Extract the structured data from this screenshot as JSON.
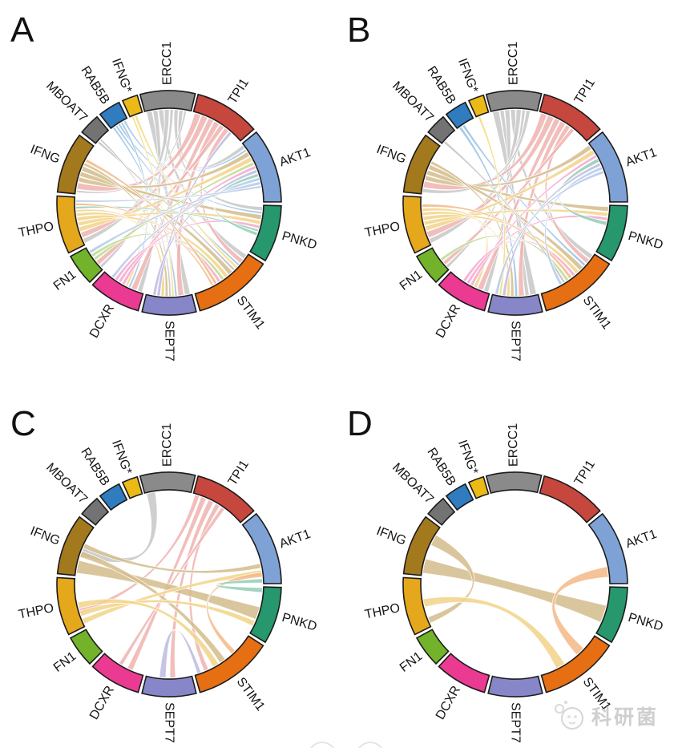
{
  "watermark": {
    "text": "科研菌"
  },
  "chart_data": {
    "type": "chord",
    "title": "",
    "layout": {
      "panels_grid": [
        2,
        2
      ],
      "sector_ring": true,
      "labels": "radial"
    },
    "genes": [
      {
        "name": "ERCC1",
        "color": "#8A8A8A",
        "ribbon": "#C7C7C7",
        "start": 345.0,
        "end": 373.5
      },
      {
        "name": "TPI1",
        "color": "#C5473E",
        "ribbon": "#EFB3AF",
        "start": 15.0,
        "end": 49.0
      },
      {
        "name": "AKT1",
        "color": "#7FA2D6",
        "ribbon": "#B4CAE8",
        "start": 51.0,
        "end": 89.5
      },
      {
        "name": "PNKD",
        "color": "#27976E",
        "ribbon": "#93CDB5",
        "start": 91.5,
        "end": 121.0
      },
      {
        "name": "STIM1",
        "color": "#E56F12",
        "ribbon": "#F3B985",
        "start": 123.0,
        "end": 164.0
      },
      {
        "name": "SEPT7",
        "color": "#8786C8",
        "ribbon": "#BCBBE0",
        "start": 166.0,
        "end": 194.0
      },
      {
        "name": "DCXR",
        "color": "#EA3A92",
        "ribbon": "#F5A8CE",
        "start": 196.0,
        "end": 223.0
      },
      {
        "name": "FN1",
        "color": "#73B32B",
        "ribbon": "#BFDA92",
        "start": 225.0,
        "end": 241.5
      },
      {
        "name": "THPO",
        "color": "#E5A71B",
        "ribbon": "#F2D388",
        "start": 243.5,
        "end": 273.5
      },
      {
        "name": "IFNG",
        "color": "#A3791D",
        "ribbon": "#D4BC8B",
        "start": 275.5,
        "end": 307.0
      },
      {
        "name": "MBOAT7",
        "color": "#737373",
        "ribbon": "#BFBFBF",
        "start": 309.0,
        "end": 320.0
      },
      {
        "name": "RAB5B",
        "color": "#2F7CBF",
        "ribbon": "#99C1E3",
        "start": 322.0,
        "end": 333.5
      },
      {
        "name": "IFNG*",
        "color": "#EBBA16",
        "ribbon": "#F3DC7E",
        "start": 335.5,
        "end": 343.5
      }
    ],
    "panels": [
      {
        "label": "A",
        "links": [
          {
            "s": "ERCC1",
            "t": "SEPT7",
            "sw": 3.5,
            "tw": 3.5
          },
          {
            "s": "ERCC1",
            "t": "DCXR",
            "sw": 3,
            "tw": 3
          },
          {
            "s": "ERCC1",
            "t": "STIM1",
            "sw": 3,
            "tw": 3
          },
          {
            "s": "ERCC1",
            "t": "THPO",
            "sw": 3,
            "tw": 3
          },
          {
            "s": "ERCC1",
            "t": "FN1",
            "sw": 2,
            "tw": 2
          },
          {
            "s": "ERCC1",
            "t": "PNKD",
            "sw": 2.5,
            "tw": 2.5
          },
          {
            "s": "ERCC1",
            "t": "AKT1",
            "sw": 2.5,
            "tw": 2.5
          },
          {
            "s": "ERCC1",
            "t": "IFNG",
            "sw": 1.5,
            "tw": 1.5
          },
          {
            "s": "TPI1",
            "t": "IFNG",
            "sw": 4,
            "tw": 4
          },
          {
            "s": "TPI1",
            "t": "THPO",
            "sw": 4,
            "tw": 3.5
          },
          {
            "s": "TPI1",
            "t": "DCXR",
            "sw": 3.5,
            "tw": 3.5
          },
          {
            "s": "TPI1",
            "t": "SEPT7",
            "sw": 3.5,
            "tw": 3.5
          },
          {
            "s": "TPI1",
            "t": "FN1",
            "sw": 3,
            "tw": 3
          },
          {
            "s": "TPI1",
            "t": "STIM1",
            "sw": 3,
            "tw": 3
          },
          {
            "s": "RAB5B",
            "t": "SEPT7",
            "sw": 1.4,
            "tw": 1.4
          },
          {
            "s": "RAB5B",
            "t": "STIM1",
            "sw": 1.4,
            "tw": 1.4
          },
          {
            "s": "RAB5B",
            "t": "PNKD",
            "sw": 1.4,
            "tw": 1.4
          },
          {
            "s": "RAB5B",
            "t": "DCXR",
            "sw": 1.4,
            "tw": 1.4
          },
          {
            "s": "RAB5B",
            "t": "AKT1",
            "sw": 1.4,
            "tw": 1.4
          },
          {
            "s": "IFNG*",
            "t": "SEPT7",
            "sw": 1.3,
            "tw": 1.3
          },
          {
            "s": "IFNG*",
            "t": "STIM1",
            "sw": 1.6,
            "tw": 1.6
          },
          {
            "s": "MBOAT7",
            "t": "STIM1",
            "sw": 1.6,
            "tw": 1.6
          },
          {
            "s": "MBOAT7",
            "t": "SEPT7",
            "sw": 1.3,
            "tw": 1.3
          },
          {
            "s": "IFNG",
            "t": "AKT1",
            "sw": 3,
            "tw": 3
          },
          {
            "s": "IFNG",
            "t": "PNKD",
            "sw": 3,
            "tw": 3
          },
          {
            "s": "IFNG",
            "t": "STIM1",
            "sw": 3,
            "tw": 3
          },
          {
            "s": "IFNG",
            "t": "SEPT7",
            "sw": 1.8,
            "tw": 1.8
          },
          {
            "s": "THPO",
            "t": "AKT1",
            "sw": 3,
            "tw": 3
          },
          {
            "s": "THPO",
            "t": "PNKD",
            "sw": 2.5,
            "tw": 2.5
          },
          {
            "s": "THPO",
            "t": "STIM1",
            "sw": 2.5,
            "tw": 2.5
          },
          {
            "s": "THPO",
            "t": "SEPT7",
            "sw": 2,
            "tw": 2
          },
          {
            "s": "THPO",
            "t": "DCXR",
            "sw": 1.5,
            "tw": 1.5
          },
          {
            "s": "FN1",
            "t": "AKT1",
            "sw": 2,
            "tw": 2
          },
          {
            "s": "FN1",
            "t": "STIM1",
            "sw": 2,
            "tw": 2
          },
          {
            "s": "DCXR",
            "t": "AKT1",
            "sw": 2,
            "tw": 2
          },
          {
            "s": "DCXR",
            "t": "PNKD",
            "sw": 2,
            "tw": 2
          },
          {
            "s": "DCXR",
            "t": "STIM1",
            "sw": 2,
            "tw": 2
          },
          {
            "s": "SEPT7",
            "t": "TPI1",
            "sw": 2,
            "tw": 2
          },
          {
            "s": "SEPT7",
            "t": "AKT1",
            "sw": 2,
            "tw": 2
          },
          {
            "s": "PNKD",
            "t": "THPO",
            "sw": 1.5,
            "tw": 1.5
          },
          {
            "s": "PNKD",
            "t": "AKT1",
            "sw": 2,
            "tw": 2
          },
          {
            "s": "STIM1",
            "t": "IFNG",
            "sw": 2,
            "tw": 2
          },
          {
            "s": "STIM1",
            "t": "THPO",
            "sw": 1.5,
            "tw": 1.5
          },
          {
            "s": "AKT1",
            "t": "DCXR",
            "sw": 2,
            "tw": 2
          },
          {
            "s": "AKT1",
            "t": "FN1",
            "sw": 2,
            "tw": 2
          },
          {
            "s": "AKT1",
            "t": "THPO",
            "sw": 1.5,
            "tw": 1.5
          }
        ]
      },
      {
        "label": "B",
        "links": [
          {
            "s": "ERCC1",
            "t": "SEPT7",
            "sw": 4,
            "tw": 4
          },
          {
            "s": "ERCC1",
            "t": "SEPT7",
            "sw": 2.5,
            "tw": 2.5
          },
          {
            "s": "ERCC1",
            "t": "DCXR",
            "sw": 3,
            "tw": 3
          },
          {
            "s": "ERCC1",
            "t": "STIM1",
            "sw": 3,
            "tw": 3
          },
          {
            "s": "ERCC1",
            "t": "THPO",
            "sw": 3,
            "tw": 3
          },
          {
            "s": "ERCC1",
            "t": "FN1",
            "sw": 2,
            "tw": 2
          },
          {
            "s": "ERCC1",
            "t": "IFNG",
            "sw": 2.5,
            "tw": 2.5
          },
          {
            "s": "TPI1",
            "t": "IFNG",
            "sw": 4,
            "tw": 4
          },
          {
            "s": "TPI1",
            "t": "THPO",
            "sw": 4,
            "tw": 4
          },
          {
            "s": "TPI1",
            "t": "DCXR",
            "sw": 3.5,
            "tw": 3.5
          },
          {
            "s": "TPI1",
            "t": "SEPT7",
            "sw": 3.5,
            "tw": 3.5
          },
          {
            "s": "TPI1",
            "t": "STIM1",
            "sw": 3,
            "tw": 3
          },
          {
            "s": "TPI1",
            "t": "FN1",
            "sw": 2.5,
            "tw": 2.5
          },
          {
            "s": "RAB5B",
            "t": "SEPT7",
            "sw": 1.8,
            "tw": 1.8
          },
          {
            "s": "RAB5B",
            "t": "STIM1",
            "sw": 1.8,
            "tw": 1.8
          },
          {
            "s": "IFNG",
            "t": "AKT1",
            "sw": 3,
            "tw": 3
          },
          {
            "s": "IFNG",
            "t": "PNKD",
            "sw": 3,
            "tw": 3
          },
          {
            "s": "IFNG",
            "t": "STIM1",
            "sw": 3,
            "tw": 3
          },
          {
            "s": "IFNG",
            "t": "SEPT7",
            "sw": 2,
            "tw": 2
          },
          {
            "s": "THPO",
            "t": "AKT1",
            "sw": 3,
            "tw": 3
          },
          {
            "s": "THPO",
            "t": "PNKD",
            "sw": 2.5,
            "tw": 2.5
          },
          {
            "s": "THPO",
            "t": "STIM1",
            "sw": 2.5,
            "tw": 2.5
          },
          {
            "s": "THPO",
            "t": "SEPT7",
            "sw": 2,
            "tw": 2
          },
          {
            "s": "THPO",
            "t": "DCXR",
            "sw": 2,
            "tw": 2
          },
          {
            "s": "DCXR",
            "t": "AKT1",
            "sw": 2,
            "tw": 2
          },
          {
            "s": "DCXR",
            "t": "PNKD",
            "sw": 2,
            "tw": 2
          },
          {
            "s": "DCXR",
            "t": "STIM1",
            "sw": 2,
            "tw": 2
          },
          {
            "s": "PNKD",
            "t": "AKT1",
            "sw": 2.5,
            "tw": 2.5
          },
          {
            "s": "SEPT7",
            "t": "AKT1",
            "sw": 2,
            "tw": 2
          },
          {
            "s": "STIM1",
            "t": "THPO",
            "sw": 2,
            "tw": 2
          },
          {
            "s": "FN1",
            "t": "STIM1",
            "sw": 2,
            "tw": 2
          },
          {
            "s": "IFNG*",
            "t": "SEPT7",
            "sw": 1.6,
            "tw": 1.6
          },
          {
            "s": "MBOAT7",
            "t": "STIM1",
            "sw": 1.6,
            "tw": 1.6
          },
          {
            "s": "AKT1",
            "t": "STIM1",
            "sw": 2,
            "tw": 2
          },
          {
            "s": "AKT1",
            "t": "SEPT7",
            "sw": 2,
            "tw": 2
          }
        ]
      },
      {
        "label": "C",
        "links": [
          {
            "s": "ERCC1",
            "t": "IFNG",
            "sw": 5.5,
            "tw": 6,
            "sa": 346,
            "ta": 288
          },
          {
            "s": "TPI1",
            "t": "THPO",
            "sw": 3,
            "tw": 3,
            "sa": 16,
            "ta": 252
          },
          {
            "s": "TPI1",
            "t": "DCXR",
            "sw": 3.5,
            "tw": 3.5,
            "sa": 20,
            "ta": 203
          },
          {
            "s": "TPI1",
            "t": "SEPT7",
            "sw": 3.5,
            "tw": 3.5,
            "sa": 25,
            "ta": 176
          },
          {
            "s": "TPI1",
            "t": "STIM1",
            "sw": 3,
            "tw": 3,
            "sa": 30,
            "ta": 155
          },
          {
            "s": "TPI1",
            "t": "DCXR",
            "sw": 2.5,
            "tw": 2.5,
            "sa": 34,
            "ta": 210
          },
          {
            "s": "IFNG",
            "t": "PNKD",
            "sw": 8,
            "tw": 8,
            "sa": 277,
            "ta": 104
          },
          {
            "s": "IFNG",
            "t": "STIM1",
            "sw": 4,
            "tw": 4,
            "sa": 287,
            "ta": 143
          },
          {
            "s": "IFNG",
            "t": "AKT1",
            "sw": 3,
            "tw": 3,
            "sa": 293,
            "ta": 77
          },
          {
            "s": "THPO",
            "t": "AKT1",
            "sw": 3.5,
            "tw": 3.5,
            "sa": 245,
            "ta": 81
          },
          {
            "s": "THPO",
            "t": "PNKD",
            "sw": 3.5,
            "tw": 3.5,
            "sa": 250,
            "ta": 113
          },
          {
            "s": "THPO",
            "t": "STIM1",
            "sw": 4,
            "tw": 4,
            "sa": 255,
            "ta": 148
          },
          {
            "s": "STIM1",
            "t": "AKT1",
            "sw": 3,
            "tw": 3,
            "sa": 135,
            "ta": 82.5
          },
          {
            "s": "PNKD",
            "t": "AKT1",
            "sw": 3,
            "tw": 2.5,
            "sa": 92,
            "ta": 86.5
          },
          {
            "s": "SEPT7",
            "t": "STIM1",
            "sw": 4,
            "tw": 2.5,
            "sa": 182,
            "ta": 160
          }
        ]
      },
      {
        "label": "D",
        "links": [
          {
            "s": "IFNG",
            "t": "PNKD",
            "sw": 9,
            "tw": 11,
            "sa": 277,
            "ta": 103
          },
          {
            "s": "IFNG",
            "t": "THPO",
            "sw": 7,
            "tw": 4,
            "sa": 295,
            "ta": 245.5
          },
          {
            "s": "THPO",
            "t": "STIM1",
            "sw": 5,
            "tw": 6,
            "sa": 256,
            "ta": 148
          },
          {
            "s": "STIM1",
            "t": "AKT1",
            "sw": 6,
            "tw": 6.5,
            "sa": 133,
            "ta": 79
          }
        ]
      }
    ]
  }
}
